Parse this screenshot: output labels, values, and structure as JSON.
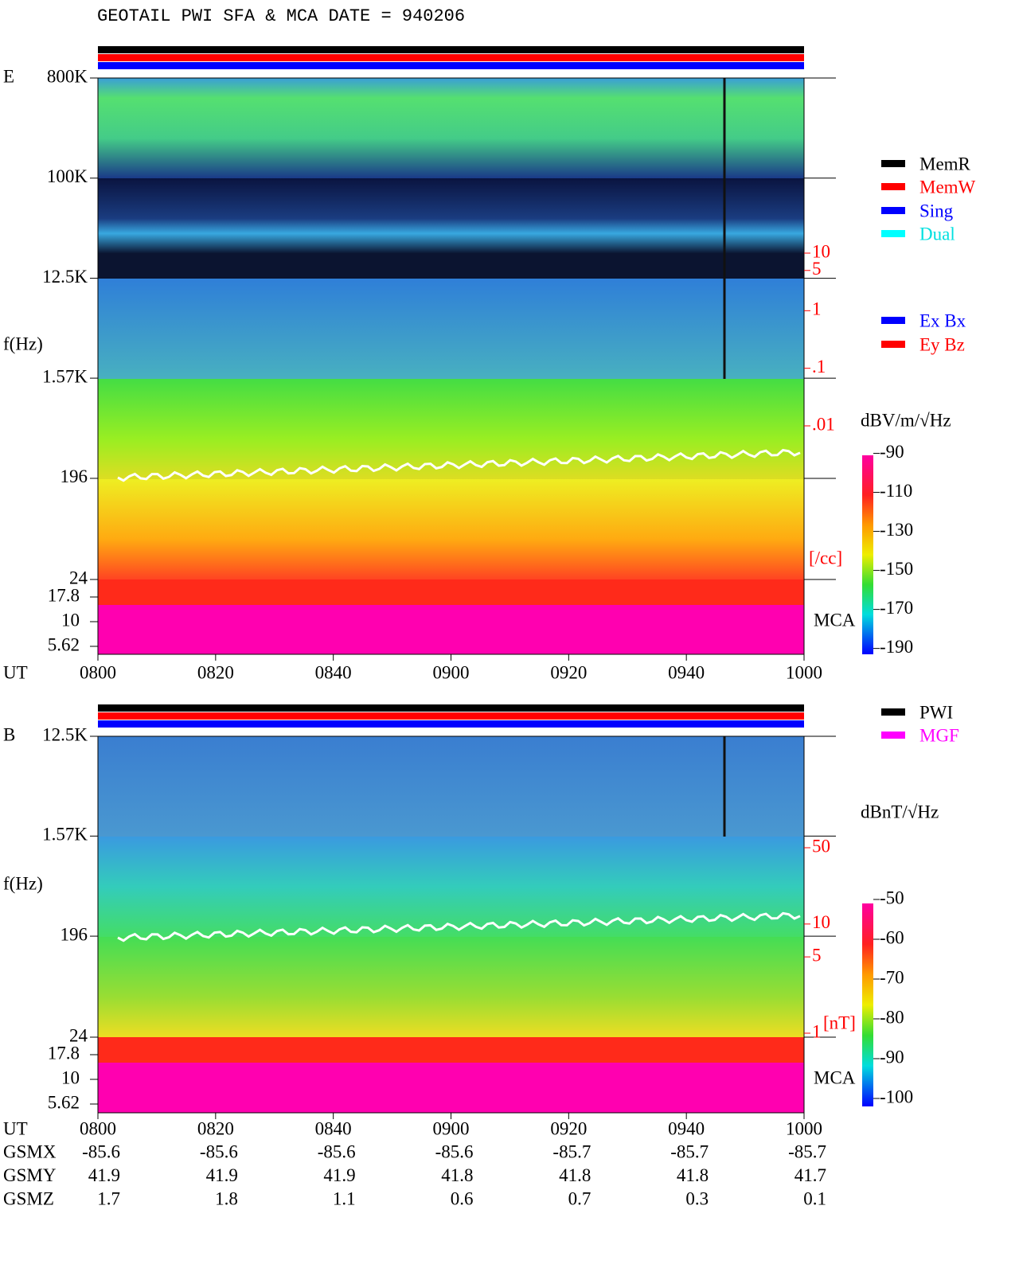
{
  "title": "GEOTAIL  PWI SFA & MCA   DATE = 940206",
  "chart_data": [
    {
      "type": "spectrogram",
      "panel_label": "E",
      "y_label": "f(Hz)",
      "x_label": "UT",
      "categories": [
        "0800",
        "0820",
        "0840",
        "0900",
        "0920",
        "0940",
        "1000"
      ],
      "ylim": [
        24,
        800000
      ],
      "yticks": [
        {
          "value": 800000,
          "label": "800K"
        },
        {
          "value": 100000,
          "label": "100K"
        },
        {
          "value": 12500,
          "label": "12.5K"
        },
        {
          "value": 1570,
          "label": "1.57K"
        },
        196,
        24
      ],
      "mca_label": "MCA",
      "mca_lim": [
        5.62,
        17.8
      ],
      "mca_ticks": [
        17.8,
        10,
        5.62
      ],
      "density_lim": [
        0.01,
        10
      ],
      "density_ticks": [
        10,
        5,
        1,
        {
          "value": 0.1,
          "label": ".1"
        },
        {
          "value": 0.01,
          "label": ".01"
        }
      ],
      "density_unit": "[/cc]",
      "legend": [
        {
          "name": "MemR",
          "color": "#000000"
        },
        {
          "name": "MemW",
          "color": "#ff0000"
        },
        {
          "name": "Sing",
          "color": "#0000ff"
        },
        {
          "name": "Dual",
          "color": "#00ffff"
        },
        {
          "name": "Ex Bx",
          "color": "#0000ff"
        },
        {
          "name": "Ey Bz",
          "color": "#ff0000"
        }
      ],
      "colorbar_label": "dBV/m/√Hz",
      "clim": [
        -193,
        -91
      ],
      "cticks": [
        -90,
        -110,
        -130,
        -150,
        -170,
        -190
      ]
    },
    {
      "type": "spectrogram",
      "panel_label": "B",
      "y_label": "f(Hz)",
      "x_label": "UT",
      "categories": [
        "0800",
        "0820",
        "0840",
        "0900",
        "0920",
        "0940",
        "1000"
      ],
      "ylim": [
        24,
        12500
      ],
      "yticks": [
        {
          "value": 12500,
          "label": "12.5K"
        },
        {
          "value": 1570,
          "label": "1.57K"
        },
        196,
        24
      ],
      "mca_label": "MCA",
      "mca_lim": [
        5.62,
        17.8
      ],
      "mca_ticks": [
        17.8,
        10,
        5.62
      ],
      "density_lim": [
        1,
        50
      ],
      "density_ticks": [
        50,
        10,
        5,
        1
      ],
      "density_unit": "[nT]",
      "legend": [
        {
          "name": "PWI",
          "color": "#000000"
        },
        {
          "name": "MGF",
          "color": "#ff00ff"
        }
      ],
      "colorbar_label": "dBnT/√Hz",
      "clim": [
        -102,
        -51
      ],
      "cticks": [
        -50,
        -60,
        -70,
        -80,
        -90,
        -100
      ]
    }
  ],
  "orbit": {
    "rows": [
      {
        "label": "GSMX",
        "values": [
          -85.6,
          -85.6,
          -85.6,
          -85.6,
          -85.7,
          -85.7,
          -85.7
        ]
      },
      {
        "label": "GSMY",
        "values": [
          41.9,
          41.9,
          41.9,
          41.8,
          41.8,
          41.8,
          41.7
        ]
      },
      {
        "label": "GSMZ",
        "values": [
          1.7,
          1.8,
          1.1,
          0.6,
          0.7,
          0.3,
          0.1
        ]
      }
    ]
  }
}
